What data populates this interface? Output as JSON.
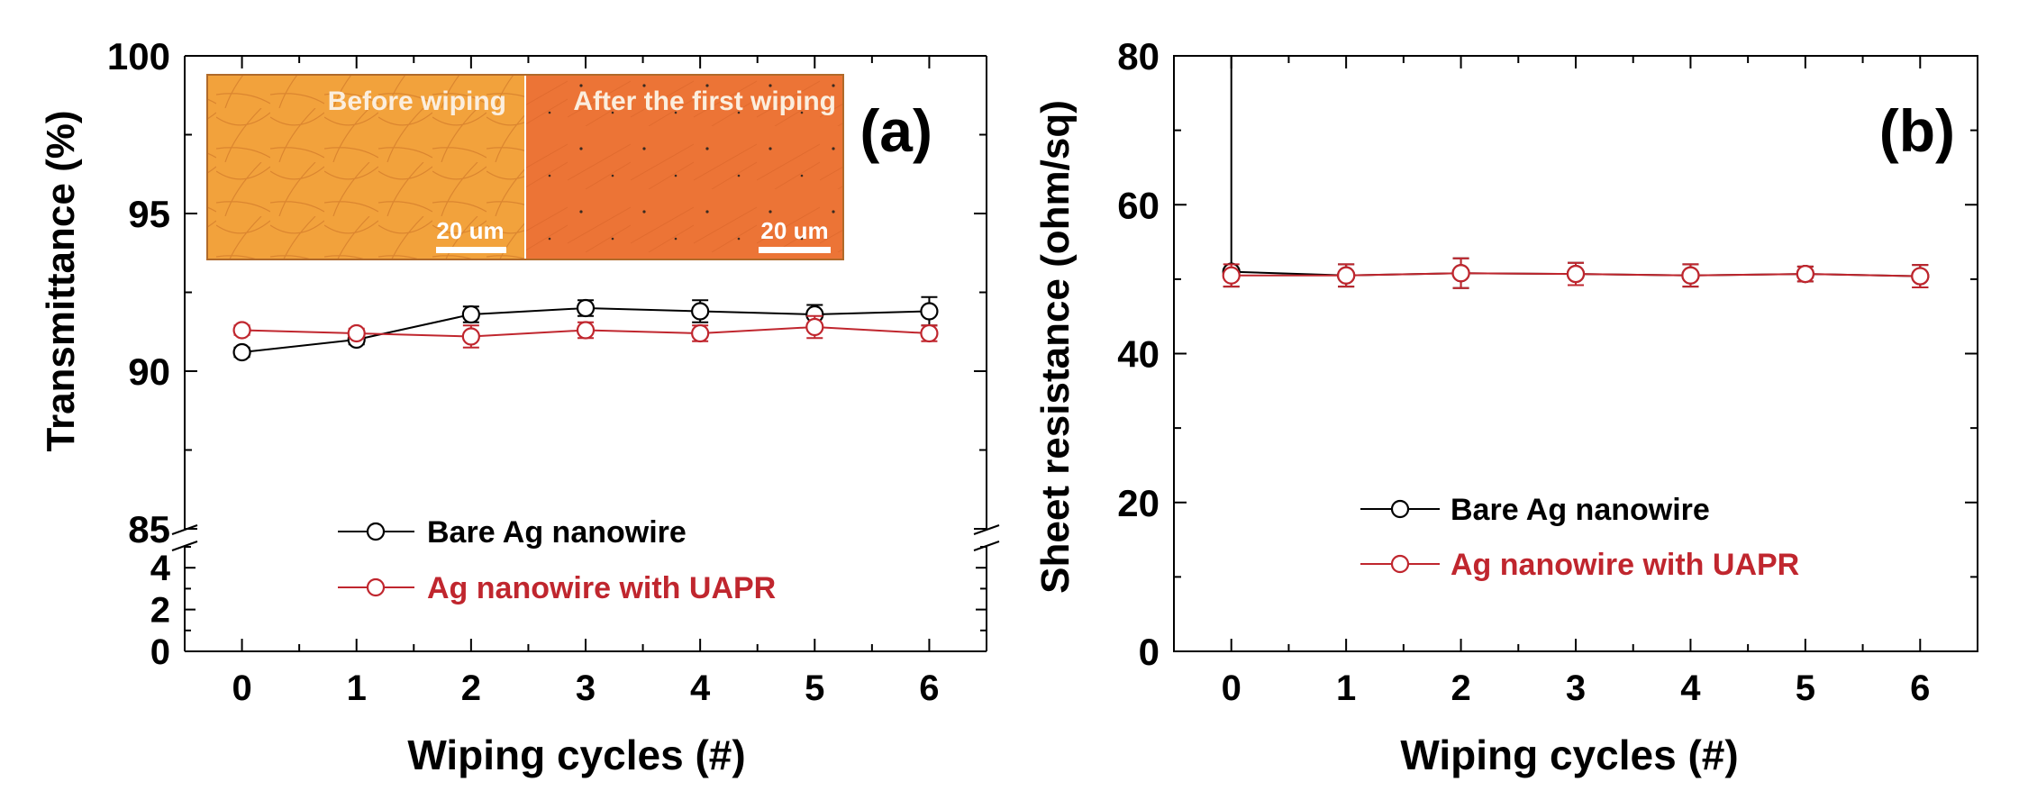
{
  "chart_data": [
    {
      "type": "line",
      "panel_label": "(a)",
      "xlabel": "Wiping cycles (#)",
      "ylabel": "Transmittance (%)",
      "x": [
        0,
        1,
        2,
        3,
        4,
        5,
        6
      ],
      "xlim": [
        -0.5,
        6.5
      ],
      "xticks": [
        "0",
        "1",
        "2",
        "3",
        "4",
        "5",
        "6"
      ],
      "ylim_lower": [
        0,
        5
      ],
      "ylim_upper": [
        85,
        100
      ],
      "yticks_lower": [
        "0",
        "2",
        "4"
      ],
      "yticks_upper": [
        "85",
        "90",
        "95",
        "100"
      ],
      "axis_break": true,
      "legend_position": "lower-center",
      "series": [
        {
          "name": "Bare Ag nanowire",
          "color": "#000000",
          "values": [
            90.6,
            91.0,
            91.8,
            92.0,
            91.9,
            91.8,
            91.9
          ],
          "errors": [
            0.15,
            0.15,
            0.25,
            0.25,
            0.35,
            0.3,
            0.45
          ]
        },
        {
          "name": "Ag nanowire with UAPR",
          "color": "#c0262e",
          "values": [
            91.3,
            91.2,
            91.1,
            91.3,
            91.2,
            91.4,
            91.2
          ],
          "errors": [
            0.15,
            0.15,
            0.35,
            0.25,
            0.25,
            0.35,
            0.25
          ]
        }
      ],
      "inset": {
        "left_label": "Before wiping",
        "right_label": "After the first wiping",
        "left_scale": "20 um",
        "right_scale": "20 um",
        "left_color": "#f2a23c",
        "right_color": "#ec7436"
      }
    },
    {
      "type": "line",
      "panel_label": "(b)",
      "xlabel": "Wiping cycles (#)",
      "ylabel": "Sheet resistance (ohm/sq)",
      "x": [
        0,
        1,
        2,
        3,
        4,
        5,
        6
      ],
      "xlim": [
        -0.5,
        6.5
      ],
      "xticks": [
        "0",
        "1",
        "2",
        "3",
        "4",
        "5",
        "6"
      ],
      "ylim": [
        0,
        80
      ],
      "yticks": [
        "0",
        "20",
        "40",
        "60",
        "80"
      ],
      "legend_position": "lower-center",
      "series": [
        {
          "name": "Bare Ag nanowire",
          "color": "#000000",
          "values": [
            51.0,
            50.5,
            50.8,
            50.7,
            50.5,
            50.7,
            50.4
          ],
          "errors": [
            2.0,
            1.5,
            2.0,
            1.5,
            1.5,
            1.0,
            1.5
          ],
          "error_upper_override": [
            80,
            null,
            null,
            null,
            null,
            null,
            null
          ]
        },
        {
          "name": "Ag nanowire with UAPR",
          "color": "#c0262e",
          "values": [
            50.5,
            50.5,
            50.8,
            50.7,
            50.5,
            50.7,
            50.4
          ],
          "errors": [
            1.5,
            1.5,
            2.0,
            1.5,
            1.5,
            1.0,
            1.5
          ]
        }
      ]
    }
  ]
}
